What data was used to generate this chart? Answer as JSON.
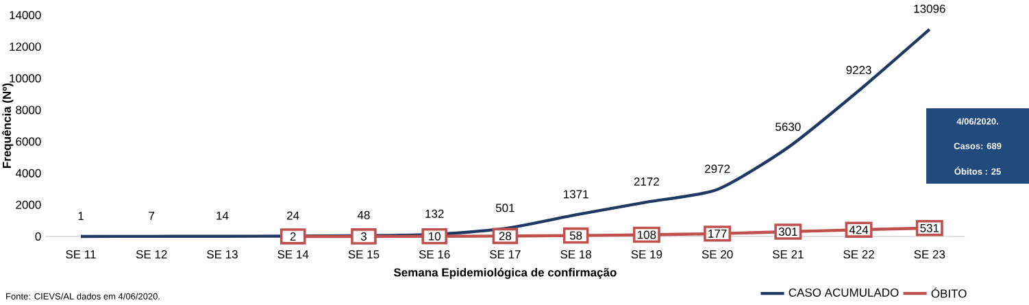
{
  "chart_data": {
    "type": "line",
    "categories": [
      "SE 11",
      "SE 12",
      "SE 13",
      "SE 14",
      "SE 15",
      "SE 16",
      "SE 17",
      "SE 18",
      "SE 19",
      "SE 20",
      "SE 21",
      "SE 22",
      "SE 23"
    ],
    "series": [
      {
        "name": "CASO ACUMULADO",
        "color": "#203864",
        "values": [
          1,
          7,
          14,
          24,
          48,
          132,
          501,
          1371,
          2172,
          2972,
          5630,
          9223,
          13096
        ]
      },
      {
        "name": "ÓBITO",
        "color": "#c0504d",
        "marker": "square",
        "values": [
          null,
          null,
          null,
          2,
          3,
          10,
          28,
          58,
          108,
          177,
          301,
          424,
          531
        ]
      }
    ],
    "ylim": [
      0,
      14000
    ],
    "yticks": [
      0,
      2000,
      4000,
      6000,
      8000,
      10000,
      12000,
      14000
    ],
    "xlabel": "Semana Epidemiológica de confirmação",
    "ylabel": "Frequência (Nº)",
    "data_labels": true,
    "legend": "bottom right",
    "line_style": "solid",
    "annotations": [
      "4/06/2020.",
      "Casos: 689",
      "Óbitos : 25",
      "Fonte: CIEVS/AL dados em 4/06/2020."
    ]
  }
}
